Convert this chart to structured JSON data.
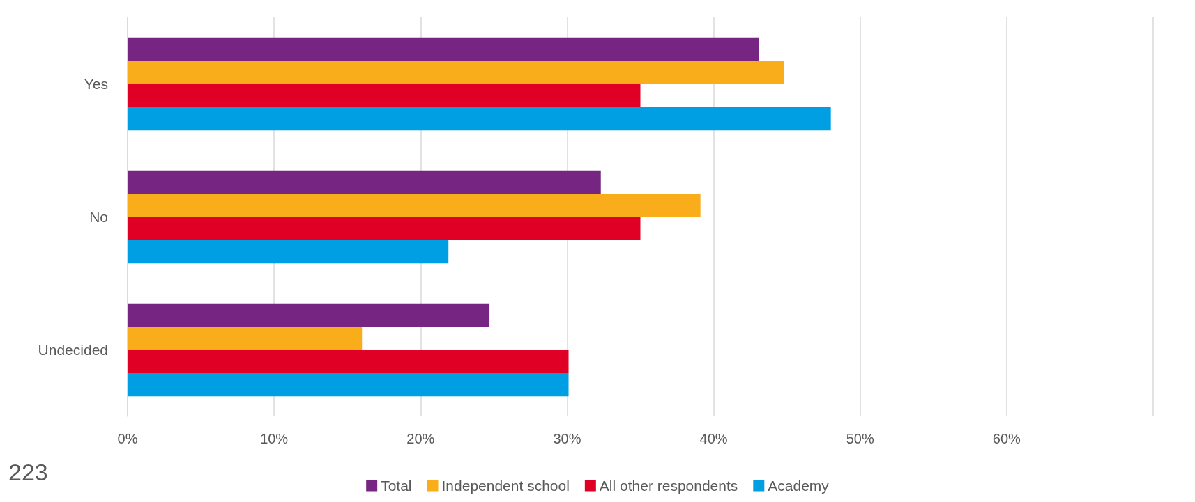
{
  "chart_data": {
    "type": "bar",
    "orientation": "horizontal",
    "categories": [
      "Yes",
      "No",
      "Undecided"
    ],
    "series": [
      {
        "name": "Total",
        "color": "#772583",
        "values": [
          43.1,
          32.3,
          24.7
        ]
      },
      {
        "name": "Independent school",
        "color": "#f9ad1b",
        "values": [
          44.8,
          39.1,
          16.0
        ]
      },
      {
        "name": "All other respondents",
        "color": "#e00025",
        "values": [
          35.0,
          35.0,
          30.1
        ]
      },
      {
        "name": "Academy",
        "color": "#009fe3",
        "values": [
          48.0,
          21.9,
          30.1
        ]
      }
    ],
    "xlim": [
      0,
      70
    ],
    "xticks": [
      {
        "value": 0,
        "label": "0%"
      },
      {
        "value": 10,
        "label": "10%"
      },
      {
        "value": 20,
        "label": "20%"
      },
      {
        "value": 30,
        "label": "30%"
      },
      {
        "value": 40,
        "label": "40%"
      },
      {
        "value": 50,
        "label": "50%"
      },
      {
        "value": 60,
        "label": "60%"
      },
      {
        "value": 70,
        "label": null
      }
    ],
    "grid": "x",
    "legend": "bottom",
    "annotations": [
      "223"
    ]
  }
}
